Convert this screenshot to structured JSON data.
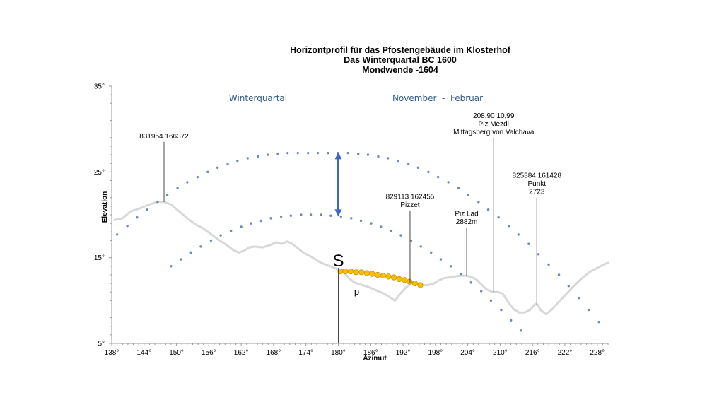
{
  "chart_data": {
    "type": "line",
    "title": [
      "Horizontprofil für das Pfostengebäude im Klosterhof",
      "Das Winterquartal BC 1600",
      "Mondwende -1604"
    ],
    "xlabel": "Azimut",
    "ylabel": "Elevation",
    "xlim": [
      138,
      230
    ],
    "ylim": [
      5,
      35
    ],
    "x_ticks": [
      {
        "value": 138,
        "label": "138°"
      },
      {
        "value": 144,
        "label": "144°"
      },
      {
        "value": 150,
        "label": "150°"
      },
      {
        "value": 156,
        "label": "156°"
      },
      {
        "value": 162,
        "label": "162°"
      },
      {
        "value": 168,
        "label": "168°"
      },
      {
        "value": 174,
        "label": "174°"
      },
      {
        "value": 180,
        "label": "180°"
      },
      {
        "value": 186,
        "label": "186°"
      },
      {
        "value": 192,
        "label": "192°"
      },
      {
        "value": 198,
        "label": "198°"
      },
      {
        "value": 204,
        "label": "204°"
      },
      {
        "value": 210,
        "label": "210°"
      },
      {
        "value": 216,
        "label": "216°"
      },
      {
        "value": 222,
        "label": "222°"
      },
      {
        "value": 228,
        "label": "228°"
      }
    ],
    "y_ticks": [
      {
        "value": 5,
        "label": "5°"
      },
      {
        "value": 15,
        "label": "15°"
      },
      {
        "value": 25,
        "label": "25°"
      },
      {
        "value": 35,
        "label": "35°"
      }
    ],
    "grid": false,
    "region_labels": [
      "Winterquartal",
      "November  -  Februar"
    ],
    "colors": {
      "horizon": "#d8d8d8",
      "moon_dots": "#6f86c2",
      "arrow": "#3a66c4",
      "yellow_dots": "#f5c200",
      "yellow_edge": "#d98a00"
    },
    "series": [
      {
        "style": "horizon_line",
        "points": [
          [
            138.5,
            19.4
          ],
          [
            140,
            19.6
          ],
          [
            141.5,
            20.4
          ],
          [
            143,
            20.7
          ],
          [
            145,
            21.2
          ],
          [
            146.5,
            21.5
          ],
          [
            147.7,
            21.5
          ],
          [
            149,
            21.2
          ],
          [
            150.5,
            20.4
          ],
          [
            152,
            19.6
          ],
          [
            153.5,
            18.9
          ],
          [
            155,
            18.4
          ],
          [
            156.5,
            17.7
          ],
          [
            158,
            17.0
          ],
          [
            159.5,
            16.4
          ],
          [
            160.5,
            15.9
          ],
          [
            161.5,
            15.6
          ],
          [
            162.5,
            15.8
          ],
          [
            163.5,
            16.2
          ],
          [
            164.5,
            16.3
          ],
          [
            166,
            16.2
          ],
          [
            167.5,
            16.5
          ],
          [
            168.5,
            16.8
          ],
          [
            169.5,
            16.6
          ],
          [
            170.5,
            16.9
          ],
          [
            171.5,
            16.6
          ],
          [
            172.5,
            16.1
          ],
          [
            173.5,
            15.6
          ],
          [
            175,
            15.1
          ],
          [
            176.5,
            14.5
          ],
          [
            178,
            14.1
          ],
          [
            179,
            13.9
          ],
          [
            180,
            13.6
          ],
          [
            181,
            13.3
          ],
          [
            182,
            12.6
          ],
          [
            183,
            12.1
          ],
          [
            184,
            11.9
          ],
          [
            185.5,
            11.6
          ],
          [
            187,
            11.2
          ],
          [
            188.5,
            10.8
          ],
          [
            189.5,
            10.4
          ],
          [
            190.5,
            10.0
          ],
          [
            191.5,
            10.8
          ],
          [
            192.5,
            11.5
          ],
          [
            193.5,
            12.0
          ],
          [
            194.5,
            12.0
          ],
          [
            195.5,
            11.8
          ],
          [
            196.5,
            11.8
          ],
          [
            197.5,
            11.9
          ],
          [
            198.5,
            12.3
          ],
          [
            199.5,
            12.6
          ],
          [
            200.5,
            12.7
          ],
          [
            201.5,
            12.8
          ],
          [
            202.5,
            12.9
          ],
          [
            203.5,
            12.9
          ],
          [
            204.5,
            12.8
          ],
          [
            205.5,
            12.5
          ],
          [
            206.5,
            11.9
          ],
          [
            207.5,
            11.3
          ],
          [
            208.5,
            11.0
          ],
          [
            209.5,
            11.0
          ],
          [
            210.5,
            10.8
          ],
          [
            211.5,
            9.8
          ],
          [
            212.5,
            9.0
          ],
          [
            213.5,
            8.6
          ],
          [
            214.5,
            8.6
          ],
          [
            215.5,
            8.9
          ],
          [
            216.5,
            9.6
          ],
          [
            217,
            9.5
          ],
          [
            217.5,
            8.9
          ],
          [
            218.5,
            8.4
          ],
          [
            219.5,
            8.9
          ],
          [
            220.5,
            9.6
          ],
          [
            222,
            10.6
          ],
          [
            223.5,
            11.6
          ],
          [
            225,
            12.5
          ],
          [
            226.5,
            13.3
          ],
          [
            228,
            13.8
          ],
          [
            229.5,
            14.3
          ],
          [
            230,
            14.4
          ]
        ]
      },
      {
        "style": "upper_dotted_arc",
        "points": [
          [
            139,
            17.7
          ],
          [
            140.9,
            18.7
          ],
          [
            142.7,
            19.7
          ],
          [
            144.6,
            20.6
          ],
          [
            146.5,
            21.5
          ],
          [
            148.3,
            22.3
          ],
          [
            150.2,
            23.1
          ],
          [
            152,
            23.8
          ],
          [
            153.9,
            24.4
          ],
          [
            155.8,
            25.0
          ],
          [
            157.6,
            25.5
          ],
          [
            159.5,
            25.9
          ],
          [
            161.3,
            26.3
          ],
          [
            163.2,
            26.6
          ],
          [
            165.1,
            26.8
          ],
          [
            166.9,
            27.0
          ],
          [
            168.8,
            27.1
          ],
          [
            170.6,
            27.2
          ],
          [
            172.5,
            27.2
          ],
          [
            174.4,
            27.2
          ],
          [
            176.2,
            27.2
          ],
          [
            178.1,
            27.2
          ],
          [
            179.9,
            27.2
          ],
          [
            181.8,
            27.2
          ],
          [
            183.7,
            27.1
          ],
          [
            185.5,
            27.0
          ],
          [
            187.4,
            26.8
          ],
          [
            189.2,
            26.6
          ],
          [
            191.1,
            26.3
          ],
          [
            193,
            25.9
          ],
          [
            194.8,
            25.5
          ],
          [
            196.7,
            25.0
          ],
          [
            198.5,
            24.4
          ],
          [
            200.4,
            23.8
          ],
          [
            202.3,
            23.1
          ],
          [
            204.1,
            22.3
          ],
          [
            206,
            21.5
          ],
          [
            207.8,
            20.6
          ],
          [
            209.7,
            19.7
          ],
          [
            211.6,
            18.7
          ],
          [
            213.4,
            17.7
          ],
          [
            215.3,
            16.6
          ],
          [
            217.1,
            15.4
          ],
          [
            219,
            14.2
          ],
          [
            220.9,
            13.0
          ],
          [
            222.7,
            11.7
          ],
          [
            224.6,
            10.3
          ],
          [
            226.4,
            8.9
          ],
          [
            228.3,
            7.5
          ]
        ]
      },
      {
        "style": "lower_dotted_arc",
        "points": [
          [
            149,
            14.0
          ],
          [
            150.8,
            14.8
          ],
          [
            152.7,
            15.6
          ],
          [
            154.5,
            16.3
          ],
          [
            156.4,
            17.0
          ],
          [
            158.2,
            17.6
          ],
          [
            160.1,
            18.1
          ],
          [
            162,
            18.6
          ],
          [
            163.8,
            19.0
          ],
          [
            165.7,
            19.3
          ],
          [
            167.5,
            19.6
          ],
          [
            169.4,
            19.8
          ],
          [
            171.2,
            19.9
          ],
          [
            173.1,
            20.0
          ],
          [
            174.9,
            20.0
          ],
          [
            176.8,
            20.0
          ],
          [
            178.6,
            19.9
          ],
          [
            180.5,
            19.8
          ],
          [
            182.4,
            19.6
          ],
          [
            184.2,
            19.3
          ],
          [
            186.1,
            19.0
          ],
          [
            187.9,
            18.6
          ],
          [
            189.8,
            18.1
          ],
          [
            191.6,
            17.6
          ],
          [
            193.5,
            17.0
          ],
          [
            195.3,
            16.3
          ],
          [
            197.2,
            15.6
          ],
          [
            199,
            14.8
          ],
          [
            200.9,
            14.0
          ],
          [
            202.8,
            13.1
          ],
          [
            204.6,
            12.1
          ],
          [
            206.5,
            11.1
          ],
          [
            208.3,
            10.0
          ],
          [
            210.2,
            8.9
          ],
          [
            212,
            7.7
          ],
          [
            213.9,
            6.5
          ]
        ]
      },
      {
        "style": "yellow_dotted_path",
        "points": [
          [
            180.4,
            13.4
          ],
          [
            181.3,
            13.4
          ],
          [
            182.3,
            13.4
          ],
          [
            183.3,
            13.3
          ],
          [
            184.3,
            13.3
          ],
          [
            185.3,
            13.2
          ],
          [
            186.3,
            13.1
          ],
          [
            187.3,
            13.0
          ],
          [
            188.3,
            12.9
          ],
          [
            189.3,
            12.8
          ],
          [
            190.3,
            12.7
          ],
          [
            191.3,
            12.5
          ],
          [
            192.3,
            12.4
          ],
          [
            193.2,
            12.2
          ],
          [
            194.2,
            12.0
          ],
          [
            195.2,
            11.8
          ]
        ]
      }
    ],
    "vertical_lines": [
      {
        "x": 180,
        "y_bottom": 5,
        "y_top": 13.8,
        "label": "S",
        "sub_label": "p"
      },
      {
        "x": 147.7,
        "y_bottom": 21.5,
        "y_top": 28.5,
        "label": "831954 166372"
      },
      {
        "x": 193.3,
        "y_bottom": 12.0,
        "y_top": 20.5,
        "label": "829113 162455\nPizzet"
      },
      {
        "x": 203.8,
        "y_bottom": 12.9,
        "y_top": 18.5,
        "label": "Piz Lad\n2882m"
      },
      {
        "x": 208.8,
        "y_bottom": 11.0,
        "y_top": 29.0,
        "label": "208,90 10,99\nPiz Mezdi\nMittagsberg von Valchava"
      },
      {
        "x": 216.8,
        "y_bottom": 9.5,
        "y_top": 22.0,
        "label": "825384 161428\nPunkt\n2723"
      }
    ],
    "arrow": {
      "x": 180,
      "y_from": 19.8,
      "y_to": 27.3,
      "style": "double-headed"
    }
  }
}
